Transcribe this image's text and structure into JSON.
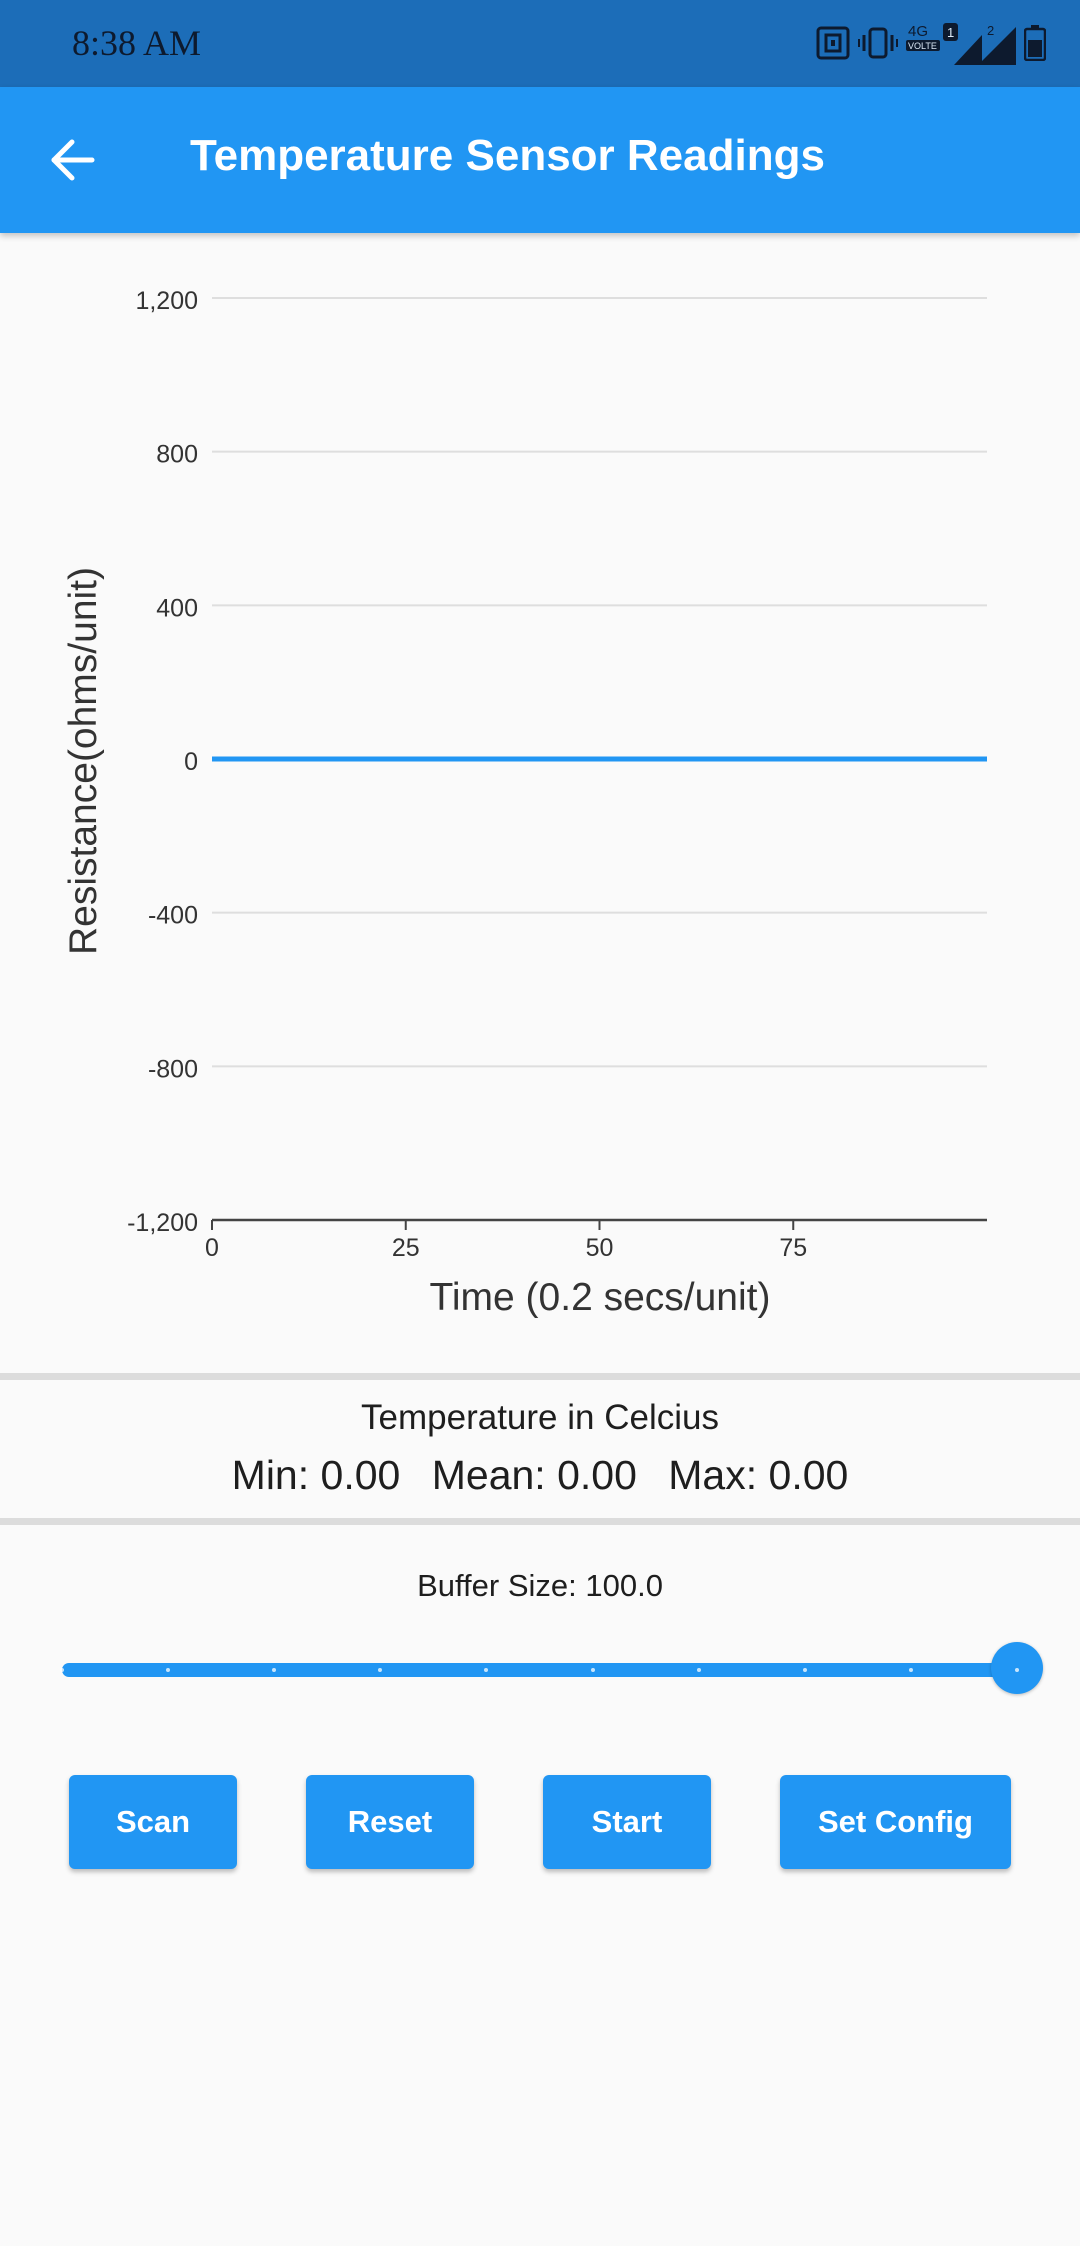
{
  "status_bar": {
    "time": "8:38 AM",
    "network_label": "4G",
    "volte_label": "VOLTE",
    "sim1_label": "1",
    "sim2_label": "2",
    "icons": [
      "nfc-icon",
      "vibrate-icon",
      "signal-icon",
      "battery-icon"
    ]
  },
  "app_bar": {
    "title": "Temperature Sensor Readings",
    "back_icon": "arrow-back-icon"
  },
  "chart_data": {
    "type": "line",
    "xlabel": "Time (0.2 secs/unit)",
    "ylabel": "Resistance(ohms/unit)",
    "xlim": [
      0,
      100
    ],
    "ylim": [
      -1200,
      1200
    ],
    "x_ticks": [
      0,
      25,
      50,
      75
    ],
    "y_ticks": [
      1200,
      800,
      400,
      0,
      -400,
      -800,
      -1200
    ],
    "x_tick_labels": [
      "0",
      "25",
      "50",
      "75"
    ],
    "y_tick_labels": [
      "1,200",
      "800",
      "400",
      "0",
      "-400",
      "-800",
      "-1,200"
    ],
    "grid": true,
    "series": [
      {
        "x": [
          0,
          100
        ],
        "y": [
          0,
          0
        ],
        "color": "#2196f3"
      }
    ]
  },
  "stats": {
    "title": "Temperature in Celcius",
    "min": "Min: 0.00",
    "mean": "Mean: 0.00",
    "max": "Max: 0.00"
  },
  "buffer": {
    "label": "Buffer Size: 100.0",
    "value": 100,
    "min": 0,
    "max": 100,
    "divisions": 9
  },
  "buttons": {
    "scan": "Scan",
    "reset": "Reset",
    "start": "Start",
    "set_config": "Set Config"
  },
  "colors": {
    "primary": "#2196f3",
    "status_bar": "#1c6db8",
    "background": "#fafafa"
  }
}
